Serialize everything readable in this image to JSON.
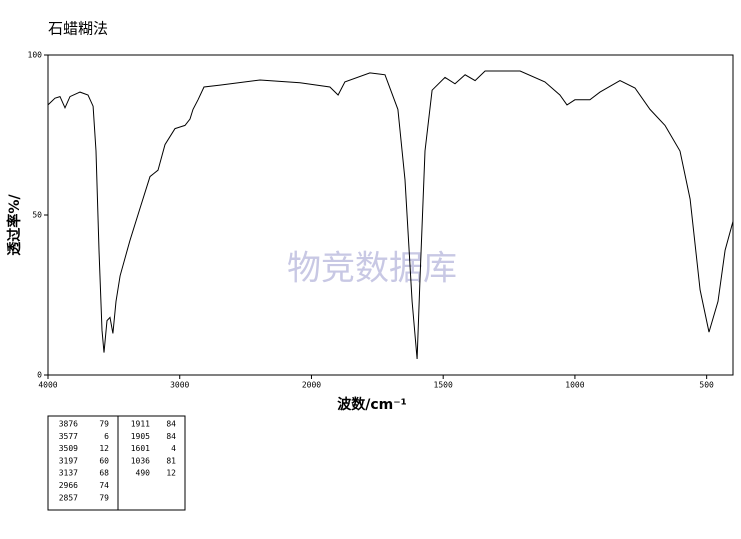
{
  "chart_data": {
    "type": "line",
    "title": "石蜡糊法",
    "x_label": "波数/cm⁻¹",
    "y_label": "透过率%/",
    "watermark": "物竞数据库",
    "xlim": [
      4000,
      400
    ],
    "x_break": 2000,
    "x_break_ratio": 2,
    "xticks": [
      4000,
      3000,
      2000,
      1500,
      1000,
      500
    ],
    "ylim": [
      0,
      100
    ],
    "yticks": [
      0,
      50,
      100
    ],
    "series": [
      {
        "color": "#000000",
        "x": [
          4000,
          3947,
          3909,
          3871,
          3833,
          3757,
          3696,
          3658,
          3636,
          3613,
          3590,
          3575,
          3552,
          3529,
          3507,
          3484,
          3453,
          3378,
          3302,
          3226,
          3195,
          3165,
          3112,
          3036,
          2960,
          2922,
          2899,
          2861,
          2816,
          2694,
          2391,
          2087,
          1930,
          1899,
          1873,
          1778,
          1721,
          1672,
          1645,
          1618,
          1599,
          1588,
          1569,
          1542,
          1493,
          1455,
          1417,
          1379,
          1341,
          1208,
          1114,
          1057,
          1030,
          1000,
          943,
          905,
          829,
          772,
          715,
          658,
          601,
          563,
          525,
          491,
          457,
          430,
          400
        ],
        "values": [
          84.4,
          86.5,
          87,
          83.5,
          87,
          88.4,
          87.5,
          84,
          70,
          39,
          14,
          7,
          17,
          18,
          13,
          23,
          31,
          42,
          52,
          62,
          63,
          64,
          72,
          77,
          78,
          80,
          83,
          86,
          90,
          90.6,
          92.2,
          91.3,
          90,
          87.5,
          91.6,
          94.4,
          93.8,
          83,
          61,
          23,
          5,
          30,
          70,
          89,
          93,
          91,
          93.8,
          92,
          95,
          95,
          91.6,
          87.5,
          84.4,
          86,
          86,
          88.4,
          92,
          89.7,
          83,
          78,
          70,
          55,
          26.6,
          13.4,
          23,
          39,
          48
        ]
      }
    ],
    "peaks": {
      "left": [
        [
          3876,
          79
        ],
        [
          3577,
          6
        ],
        [
          3509,
          12
        ],
        [
          3197,
          60
        ],
        [
          3137,
          68
        ],
        [
          2966,
          74
        ],
        [
          2857,
          79
        ]
      ],
      "right": [
        [
          1911,
          84
        ],
        [
          1905,
          84
        ],
        [
          1601,
          4
        ],
        [
          1036,
          81
        ],
        [
          490,
          12
        ]
      ]
    }
  }
}
